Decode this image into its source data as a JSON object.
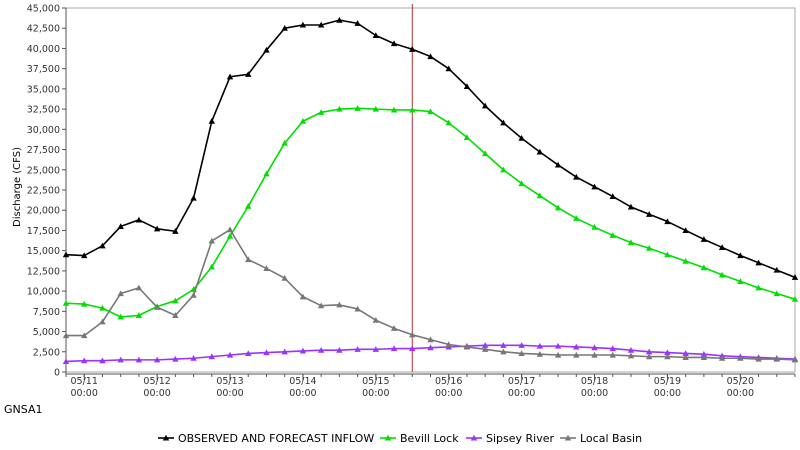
{
  "chart_data": {
    "type": "line",
    "title": "",
    "station_label": "GNSA1",
    "ylabel": "Discharge (CFS)",
    "xlabel": "",
    "ylim": [
      0,
      45000
    ],
    "yticks": [
      0,
      2500,
      5000,
      7500,
      10000,
      12500,
      15000,
      17500,
      20000,
      22500,
      25000,
      27500,
      30000,
      32500,
      35000,
      37500,
      40000,
      42500,
      45000
    ],
    "ytick_labels": [
      "0",
      "2,500",
      "5,000",
      "7,500",
      "10,000",
      "12,500",
      "15,000",
      "17,500",
      "20,000",
      "22,500",
      "25,000",
      "27,500",
      "30,000",
      "32,500",
      "35,000",
      "37,500",
      "40,000",
      "42,500",
      "45,000"
    ],
    "x_hours_per_point": 6,
    "x_first_point": "05/10 18:00",
    "x_range": [
      "05/10 18:00",
      "05/20 18:00"
    ],
    "xticks": [
      {
        "date": "05/11",
        "time": "00:00"
      },
      {
        "date": "05/12",
        "time": "00:00"
      },
      {
        "date": "05/13",
        "time": "00:00"
      },
      {
        "date": "05/14",
        "time": "00:00"
      },
      {
        "date": "05/15",
        "time": "00:00"
      },
      {
        "date": "05/16",
        "time": "00:00"
      },
      {
        "date": "05/17",
        "time": "00:00"
      },
      {
        "date": "05/18",
        "time": "00:00"
      },
      {
        "date": "05/19",
        "time": "00:00"
      },
      {
        "date": "05/20",
        "time": "00:00"
      }
    ],
    "forecast_marker": "05/15 12:00",
    "grid": false,
    "legend_position": "bottom",
    "series": [
      {
        "name": "OBSERVED AND FORECAST INFLOW",
        "color": "#000000",
        "values": [
          14500,
          14400,
          15600,
          18000,
          18800,
          17700,
          17400,
          21500,
          31000,
          36500,
          36800,
          39800,
          42500,
          42900,
          42900,
          43500,
          43100,
          41600,
          40600,
          39900,
          39000,
          37500,
          35300,
          32900,
          30800,
          28900,
          27200,
          25600,
          24100,
          22900,
          21700,
          20400,
          19500,
          18600,
          17500,
          16400,
          15400,
          14400,
          13500,
          12600,
          11700
        ]
      },
      {
        "name": "Bevill Lock",
        "color": "#00e000",
        "values": [
          8500,
          8400,
          7900,
          6800,
          7000,
          8100,
          8800,
          10200,
          13000,
          16800,
          20500,
          24500,
          28300,
          31000,
          32100,
          32500,
          32600,
          32500,
          32400,
          32400,
          32200,
          30800,
          29000,
          27000,
          25000,
          23300,
          21800,
          20300,
          19000,
          17900,
          16900,
          16000,
          15300,
          14500,
          13700,
          12900,
          12000,
          11200,
          10400,
          9700,
          9000
        ]
      },
      {
        "name": "Sipsey River",
        "color": "#9933ff",
        "values": [
          1300,
          1400,
          1400,
          1500,
          1500,
          1500,
          1600,
          1700,
          1900,
          2100,
          2300,
          2400,
          2500,
          2600,
          2700,
          2700,
          2800,
          2800,
          2900,
          2900,
          3000,
          3100,
          3200,
          3300,
          3300,
          3300,
          3200,
          3200,
          3100,
          3000,
          2900,
          2700,
          2500,
          2400,
          2300,
          2200,
          2000,
          1900,
          1800,
          1700,
          1600
        ]
      },
      {
        "name": "Local Basin",
        "color": "#777777",
        "values": [
          4500,
          4500,
          6200,
          9700,
          10400,
          8000,
          7000,
          9500,
          16200,
          17600,
          13900,
          12800,
          11600,
          9300,
          8200,
          8300,
          7800,
          6400,
          5400,
          4600,
          4000,
          3400,
          3100,
          2800,
          2500,
          2300,
          2200,
          2100,
          2100,
          2100,
          2100,
          2000,
          1900,
          1900,
          1800,
          1800,
          1700,
          1700,
          1600,
          1600,
          1500
        ]
      }
    ]
  }
}
